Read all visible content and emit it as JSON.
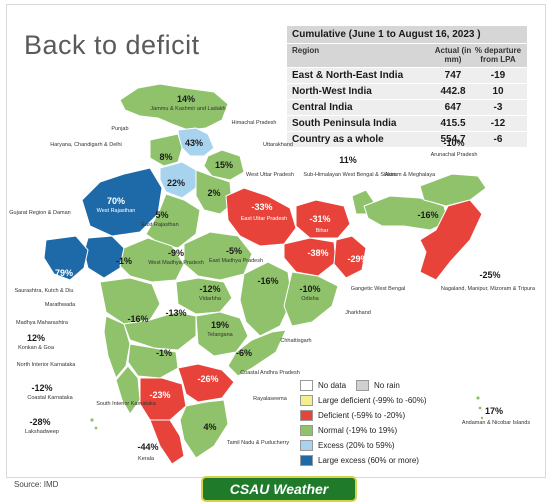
{
  "title": "Back to deficit",
  "table": {
    "caption": "Cumulative (June 1 to August 16, 2023 )",
    "headers": {
      "region": "Region",
      "actual": "Actual (in mm)",
      "departure": "% departure from LPA"
    },
    "rows": [
      {
        "region": "East & North-East India",
        "actual": "747",
        "departure": "-19"
      },
      {
        "region": "North-West India",
        "actual": "442.8",
        "departure": "10"
      },
      {
        "region": "Central India",
        "actual": "647",
        "departure": "-3"
      },
      {
        "region": "South Peninsula India",
        "actual": "415.5",
        "departure": "-12"
      },
      {
        "region": "Country as a whole",
        "actual": "554.7",
        "departure": "-6"
      }
    ]
  },
  "colors": {
    "normal": "#8fc26a",
    "deficient": "#e8433a",
    "excess": "#a8d3ef",
    "large_excess": "#1e6aa8",
    "large_deficient": "#f4ee8c",
    "no_data": "#ffffff",
    "no_rain": "#d0d0d0"
  },
  "legend": [
    {
      "label": "No data",
      "color": "#ffffff"
    },
    {
      "label": "No rain",
      "color": "#d0d0d0"
    },
    {
      "label": "Large deficient (-99% to -60%)",
      "color": "#f4ee8c"
    },
    {
      "label": "Deficient (-59% to -20%)",
      "color": "#e8433a"
    },
    {
      "label": "Normal (-19% to 19%)",
      "color": "#8fc26a"
    },
    {
      "label": "Excess (20% to 59%)",
      "color": "#a8d3ef"
    },
    {
      "label": "Large excess (60% or more)",
      "color": "#1e6aa8"
    }
  ],
  "values": {
    "jk": "14%",
    "hp": "43%",
    "pb": "8%",
    "uk": "15%",
    "hr": "22%",
    "wup": "2%",
    "wraj": "70%",
    "eraj": "5%",
    "guj": "79%",
    "saur": "-1%",
    "eup": "-33%",
    "bihar": "-31%",
    "shwb": "11%",
    "assam": "-16%",
    "arun": "-10%",
    "nmmt": "-25%",
    "jhar": "-38%",
    "gwb": "-29%",
    "wmp": "-9%",
    "emp": "-5%",
    "vid": "-12%",
    "guj_mid": "-16%",
    "odisha": "-10%",
    "mmah": "-13%",
    "mara": "-16%",
    "tel": "19%",
    "chh": "-16%",
    "konkan": "12%",
    "nik": "-1%",
    "caap": "-6%",
    "coastal_k": "-12%",
    "sik": "-23%",
    "rayal": "-26%",
    "tn": "4%",
    "kerala": "-44%",
    "lak": "-28%",
    "andaman": "17%"
  },
  "labels": {
    "jk": "Jammu & Kashmir and Ladakh",
    "hp": "Himachal Pradesh",
    "pb": "Punjab",
    "hr": "Haryana, Chandigarh & Delhi",
    "uk": "Uttarakhand",
    "wup": "West Uttar Pradesh",
    "wraj": "West Rajasthan",
    "eraj": "East Rajasthan",
    "guj": "Gujarat Region & Daman",
    "saur": "Saurashtra, Kutch & Diu",
    "eup": "East Uttar Pradesh",
    "bihar": "Bihar",
    "shwb": "Sub-Himalayan West Bengal & Sikkim",
    "assam": "Assam & Meghalaya",
    "arun": "Arunachal Pradesh",
    "nmmt": "Nagaland, Manipur, Mizoram & Tripura",
    "gwb": "Gangetic West Bengal",
    "jhar": "Jharkhand",
    "wmp": "West Madhya Pradesh",
    "emp": "East Madhya Pradesh",
    "vid": "Vidarbha",
    "mara": "Marathwada",
    "mmah": "Madhya Maharashtra",
    "odisha": "Odisha",
    "chh": "Chhattisgarh",
    "tel": "Telangana",
    "konkan": "Konkan & Goa",
    "nik": "North Interior Karnataka",
    "caap": "Coastal Andhra Pradesh",
    "coastal_k": "Coastal Karnataka",
    "sik": "South Interior Karnataka",
    "rayal": "Rayalaseema",
    "tn": "Tamil Nadu & Puducherry",
    "kerala": "Kerala",
    "lak": "Lakshadweep",
    "andaman": "Andaman & Nicobar Islands"
  },
  "source": "Source: IMD",
  "watermark": "CSAU Weather"
}
